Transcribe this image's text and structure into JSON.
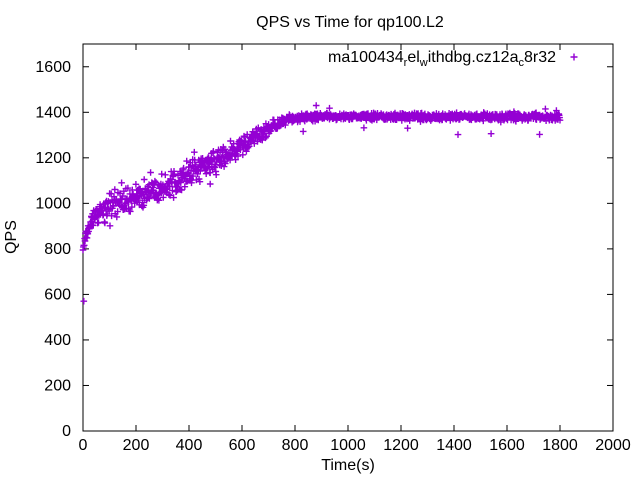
{
  "window": {
    "background": "#ffffff"
  },
  "chart_data": {
    "type": "scatter",
    "title": "QPS vs Time for qp100.L2",
    "xlabel": "Time(s)",
    "ylabel": "QPS",
    "xlim": [
      0,
      2000
    ],
    "ylim": [
      0,
      1700
    ],
    "xticks": [
      0,
      200,
      400,
      600,
      800,
      1000,
      1200,
      1400,
      1600,
      1800,
      2000
    ],
    "yticks": [
      0,
      200,
      400,
      600,
      800,
      1000,
      1200,
      1400,
      1600
    ],
    "grid": false,
    "tick_style": "inward-mirrored",
    "axis_color": "#000000",
    "text_color": "#000000",
    "legend": {
      "position": "top-right-inside",
      "marker": "plus",
      "plain_label": "ma100434_rel_withdbg.cz12a_c8r32",
      "segments": [
        {
          "text": "ma100434",
          "sub": false
        },
        {
          "text": "r",
          "sub": true
        },
        {
          "text": "el",
          "sub": false
        },
        {
          "text": "w",
          "sub": true
        },
        {
          "text": "ithdbg.cz12a",
          "sub": false
        },
        {
          "text": "c",
          "sub": true
        },
        {
          "text": "8r32",
          "sub": false
        }
      ]
    },
    "series": [
      {
        "name": "ma100434_rel_withdbg.cz12a_c8r32",
        "color": "#9400d3",
        "marker": "plus",
        "description": "QPS ramps from ~800 at t=0 up to a ~1380 QPS plateau reached near t=800s, holding steady (±20) through t=1800s",
        "sampling": {
          "t_start": 0,
          "t_end": 1800,
          "dt": 1.5,
          "seed": 1234
        },
        "mean_curve": [
          [
            0,
            800
          ],
          [
            4,
            822
          ],
          [
            10,
            848
          ],
          [
            20,
            882
          ],
          [
            35,
            922
          ],
          [
            55,
            952
          ],
          [
            80,
            972
          ],
          [
            110,
            988
          ],
          [
            160,
            1008
          ],
          [
            210,
            1032
          ],
          [
            260,
            1056
          ],
          [
            310,
            1080
          ],
          [
            360,
            1106
          ],
          [
            410,
            1134
          ],
          [
            460,
            1162
          ],
          [
            510,
            1192
          ],
          [
            560,
            1226
          ],
          [
            610,
            1258
          ],
          [
            650,
            1286
          ],
          [
            690,
            1320
          ],
          [
            730,
            1348
          ],
          [
            770,
            1364
          ],
          [
            820,
            1376
          ],
          [
            880,
            1380
          ],
          [
            1000,
            1381
          ],
          [
            1800,
            1380
          ]
        ],
        "noise_halfwidth": [
          [
            0,
            22
          ],
          [
            10,
            30
          ],
          [
            30,
            46
          ],
          [
            60,
            70
          ],
          [
            120,
            72
          ],
          [
            300,
            70
          ],
          [
            450,
            64
          ],
          [
            560,
            56
          ],
          [
            640,
            47
          ],
          [
            700,
            37
          ],
          [
            760,
            27
          ],
          [
            820,
            22
          ],
          [
            900,
            20
          ],
          [
            1800,
            20
          ]
        ],
        "outliers": [
          [
            3,
            570
          ],
          [
            480,
            1085
          ],
          [
            831,
            1316
          ],
          [
            880,
            1430
          ],
          [
            930,
            1418
          ],
          [
            1060,
            1332
          ],
          [
            1225,
            1330
          ],
          [
            1415,
            1302
          ],
          [
            1540,
            1306
          ],
          [
            1723,
            1303
          ],
          [
            1745,
            1415
          ]
        ]
      }
    ]
  }
}
